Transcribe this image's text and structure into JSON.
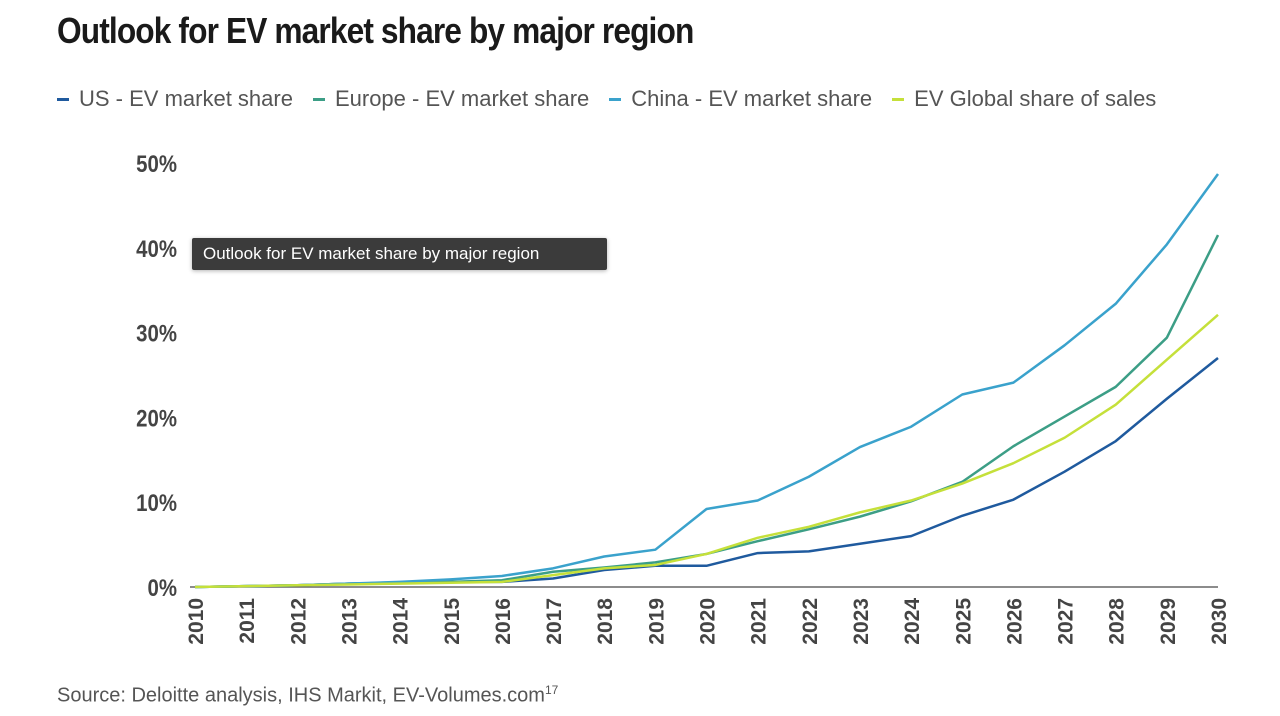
{
  "chart_data": {
    "type": "line",
    "title": "Outlook for EV market share by major region",
    "x": [
      "2010",
      "2011",
      "2012",
      "2013",
      "2014",
      "2015",
      "2016",
      "2017",
      "2018",
      "2019",
      "2020",
      "2021",
      "2022",
      "2023",
      "2024",
      "2025",
      "2026",
      "2027",
      "2028",
      "2029",
      "2030"
    ],
    "yticks": [
      "0%",
      "10%",
      "20%",
      "30%",
      "40%",
      "50%"
    ],
    "ylim": [
      0,
      50
    ],
    "grid": false,
    "legend": "top",
    "series": [
      {
        "name": "US - EV market share",
        "color": "#1f5a9e",
        "values": [
          0,
          0.1,
          0.2,
          0.4,
          0.5,
          0.6,
          0.6,
          1.0,
          2.0,
          2.5,
          2.5,
          4.0,
          4.2,
          5.1,
          6.0,
          8.4,
          10.3,
          13.6,
          17.2,
          22.2,
          27.0
        ]
      },
      {
        "name": "Europe - EV market share",
        "color": "#3c9e86",
        "values": [
          0,
          0.1,
          0.2,
          0.4,
          0.5,
          0.6,
          0.8,
          1.8,
          2.3,
          2.9,
          3.9,
          5.4,
          6.8,
          8.3,
          10.1,
          12.4,
          16.6,
          20.1,
          23.6,
          29.4,
          41.5
        ]
      },
      {
        "name": "China - EV market share",
        "color": "#3aa2cc",
        "values": [
          0,
          0.1,
          0.2,
          0.4,
          0.6,
          0.9,
          1.3,
          2.2,
          3.6,
          4.4,
          9.2,
          10.2,
          13.0,
          16.5,
          18.9,
          22.7,
          24.1,
          28.5,
          33.4,
          40.4,
          48.7
        ]
      },
      {
        "name": "EV Global share of sales",
        "color": "#c5e03a",
        "values": [
          0,
          0.1,
          0.2,
          0.3,
          0.4,
          0.5,
          0.6,
          1.4,
          2.2,
          2.6,
          3.9,
          5.8,
          7.1,
          8.8,
          10.2,
          12.2,
          14.6,
          17.6,
          21.5,
          26.8,
          32.1
        ]
      }
    ]
  },
  "tooltip": "Outlook for EV market share by major region",
  "source": "Source: Deloitte analysis, IHS Markit, EV-Volumes.com",
  "source_sup": "17"
}
